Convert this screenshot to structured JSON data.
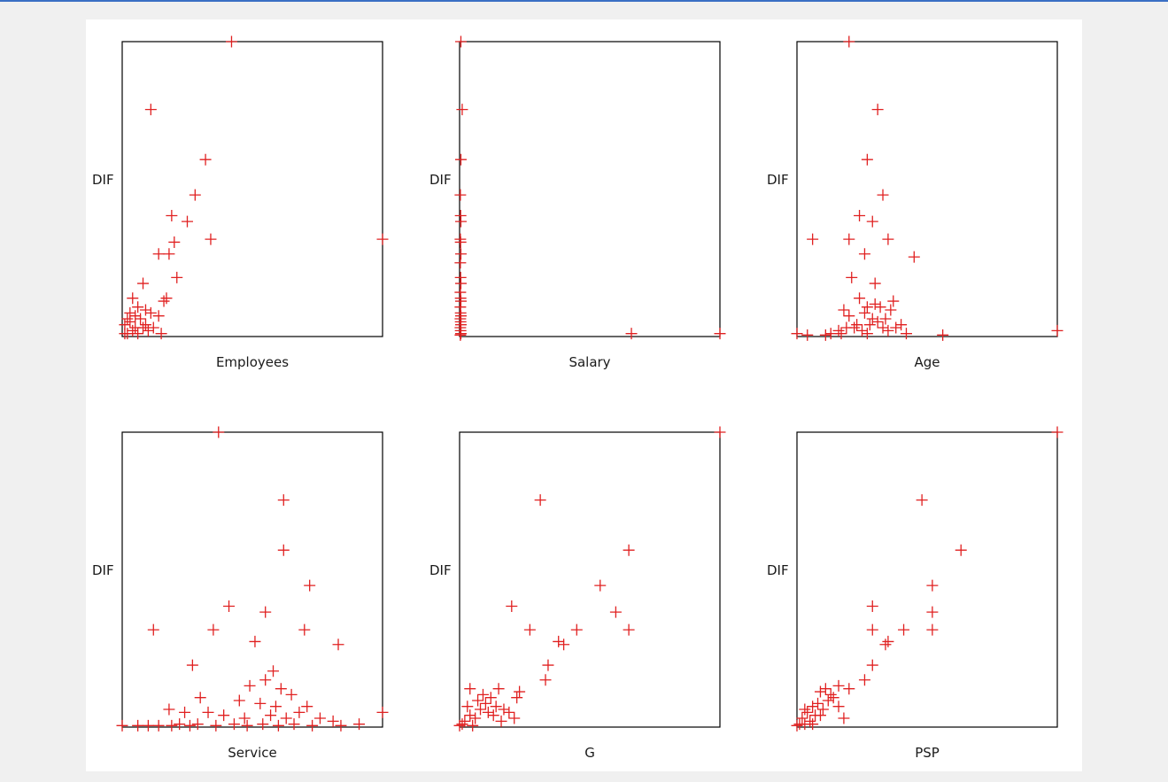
{
  "colors": {
    "marker": "#e02020",
    "frame": "#000000",
    "panel": "#ffffff",
    "background": "#f0f0f0"
  },
  "chart_data": [
    {
      "type": "scatter",
      "xlabel": "Employees",
      "ylabel": "DIF",
      "xlim": [
        0,
        100
      ],
      "ylim": [
        0,
        100
      ],
      "points": [
        [
          42,
          100
        ],
        [
          11,
          77
        ],
        [
          32,
          60
        ],
        [
          28,
          48
        ],
        [
          19,
          41
        ],
        [
          25,
          39
        ],
        [
          34,
          33
        ],
        [
          20,
          32
        ],
        [
          100,
          33
        ],
        [
          14,
          28
        ],
        [
          18,
          28
        ],
        [
          21,
          20
        ],
        [
          17,
          13
        ],
        [
          16,
          12
        ],
        [
          4,
          13
        ],
        [
          8,
          18
        ],
        [
          1,
          4
        ],
        [
          3,
          5
        ],
        [
          5,
          3
        ],
        [
          7,
          6
        ],
        [
          9,
          9
        ],
        [
          11,
          8
        ],
        [
          14,
          7
        ],
        [
          2,
          1
        ],
        [
          4,
          2
        ],
        [
          6,
          1
        ],
        [
          8,
          3
        ],
        [
          10,
          2
        ],
        [
          3,
          8
        ],
        [
          6,
          10
        ],
        [
          9,
          4
        ],
        [
          12,
          3
        ],
        [
          15,
          1
        ],
        [
          1,
          1
        ],
        [
          2,
          6
        ],
        [
          5,
          7
        ]
      ]
    },
    {
      "type": "scatter",
      "xlabel": "Salary",
      "ylabel": "DIF",
      "xlim": [
        0,
        100
      ],
      "ylim": [
        0,
        100
      ],
      "points": [
        [
          0.5,
          100
        ],
        [
          1,
          77
        ],
        [
          0.5,
          60
        ],
        [
          0.3,
          48
        ],
        [
          0.4,
          41
        ],
        [
          0.5,
          39
        ],
        [
          0.3,
          33
        ],
        [
          0.4,
          32
        ],
        [
          0.5,
          28
        ],
        [
          0.3,
          25
        ],
        [
          0.4,
          20
        ],
        [
          0.5,
          18
        ],
        [
          0.3,
          15
        ],
        [
          0.4,
          13
        ],
        [
          0.5,
          12
        ],
        [
          0.3,
          10
        ],
        [
          0.4,
          8
        ],
        [
          0.5,
          7
        ],
        [
          0.3,
          6
        ],
        [
          0.4,
          5
        ],
        [
          0.5,
          4
        ],
        [
          0.3,
          3
        ],
        [
          0.4,
          2
        ],
        [
          0.5,
          1
        ],
        [
          0.3,
          0.5
        ],
        [
          66,
          1
        ],
        [
          100,
          1
        ]
      ]
    },
    {
      "type": "scatter",
      "xlabel": "Age",
      "ylabel": "DIF",
      "xlim": [
        0,
        100
      ],
      "ylim": [
        0,
        100
      ],
      "points": [
        [
          20,
          100
        ],
        [
          31,
          77
        ],
        [
          27,
          60
        ],
        [
          33,
          48
        ],
        [
          24,
          41
        ],
        [
          29,
          39
        ],
        [
          6,
          33
        ],
        [
          20,
          33
        ],
        [
          35,
          33
        ],
        [
          26,
          28
        ],
        [
          45,
          27
        ],
        [
          21,
          20
        ],
        [
          30,
          18
        ],
        [
          24,
          13
        ],
        [
          37,
          12
        ],
        [
          32,
          10
        ],
        [
          26,
          8
        ],
        [
          20,
          7
        ],
        [
          34,
          6
        ],
        [
          28,
          4
        ],
        [
          22,
          3
        ],
        [
          16,
          2
        ],
        [
          11,
          0.5
        ],
        [
          56,
          0.5
        ],
        [
          100,
          2
        ],
        [
          0,
          1
        ],
        [
          4,
          0.5
        ],
        [
          13,
          1
        ],
        [
          17,
          1
        ],
        [
          19,
          3
        ],
        [
          23,
          4
        ],
        [
          25,
          2
        ],
        [
          27,
          1
        ],
        [
          29,
          6
        ],
        [
          31,
          5
        ],
        [
          33,
          3
        ],
        [
          35,
          2
        ],
        [
          38,
          3
        ],
        [
          40,
          4
        ],
        [
          42,
          1
        ],
        [
          18,
          9
        ],
        [
          36,
          9
        ],
        [
          30,
          11
        ],
        [
          27,
          10
        ]
      ]
    },
    {
      "type": "scatter",
      "xlabel": "Service",
      "ylabel": "DIF",
      "xlim": [
        0,
        100
      ],
      "ylim": [
        0,
        100
      ],
      "points": [
        [
          37,
          100
        ],
        [
          62,
          77
        ],
        [
          62,
          60
        ],
        [
          72,
          48
        ],
        [
          41,
          41
        ],
        [
          55,
          39
        ],
        [
          12,
          33
        ],
        [
          35,
          33
        ],
        [
          70,
          33
        ],
        [
          51,
          29
        ],
        [
          83,
          28
        ],
        [
          27,
          21
        ],
        [
          58,
          19
        ],
        [
          55,
          16
        ],
        [
          49,
          14
        ],
        [
          61,
          13
        ],
        [
          65,
          11
        ],
        [
          30,
          10
        ],
        [
          45,
          9
        ],
        [
          53,
          8
        ],
        [
          59,
          7
        ],
        [
          71,
          7
        ],
        [
          18,
          6
        ],
        [
          24,
          5
        ],
        [
          33,
          5
        ],
        [
          39,
          4
        ],
        [
          47,
          3
        ],
        [
          57,
          4
        ],
        [
          63,
          3
        ],
        [
          68,
          5
        ],
        [
          76,
          3
        ],
        [
          81,
          2
        ],
        [
          91,
          1
        ],
        [
          100,
          5
        ],
        [
          0,
          0.5
        ],
        [
          6,
          0.5
        ],
        [
          10,
          0.5
        ],
        [
          14,
          0.5
        ],
        [
          19,
          0.5
        ],
        [
          22,
          1
        ],
        [
          26,
          0.5
        ],
        [
          29,
          1
        ],
        [
          36,
          0.5
        ],
        [
          43,
          1
        ],
        [
          48,
          0.5
        ],
        [
          54,
          1
        ],
        [
          60,
          0.5
        ],
        [
          66,
          1
        ],
        [
          73,
          0.5
        ],
        [
          84,
          0.5
        ]
      ]
    },
    {
      "type": "scatter",
      "xlabel": "G",
      "ylabel": "DIF",
      "xlim": [
        0,
        100
      ],
      "ylim": [
        0,
        100
      ],
      "points": [
        [
          100,
          100
        ],
        [
          31,
          77
        ],
        [
          65,
          60
        ],
        [
          54,
          48
        ],
        [
          20,
          41
        ],
        [
          60,
          39
        ],
        [
          27,
          33
        ],
        [
          45,
          33
        ],
        [
          65,
          33
        ],
        [
          40,
          28
        ],
        [
          38,
          29
        ],
        [
          34,
          21
        ],
        [
          33,
          16
        ],
        [
          23,
          12
        ],
        [
          15,
          13
        ],
        [
          22,
          10
        ],
        [
          10,
          8
        ],
        [
          14,
          7
        ],
        [
          17,
          6
        ],
        [
          4,
          13
        ],
        [
          2,
          2
        ],
        [
          4,
          4
        ],
        [
          6,
          3
        ],
        [
          8,
          6
        ],
        [
          11,
          5
        ],
        [
          13,
          4
        ],
        [
          16,
          2
        ],
        [
          19,
          5
        ],
        [
          21,
          3
        ],
        [
          1,
          1
        ],
        [
          3,
          7
        ],
        [
          7,
          9
        ],
        [
          9,
          11
        ],
        [
          12,
          10
        ],
        [
          5,
          0.5
        ],
        [
          0,
          0.5
        ]
      ]
    },
    {
      "type": "scatter",
      "xlabel": "PSP",
      "ylabel": "DIF",
      "xlim": [
        0,
        100
      ],
      "ylim": [
        0,
        100
      ],
      "points": [
        [
          100,
          100
        ],
        [
          48,
          77
        ],
        [
          63,
          60
        ],
        [
          52,
          48
        ],
        [
          29,
          41
        ],
        [
          52,
          39
        ],
        [
          29,
          33
        ],
        [
          41,
          33
        ],
        [
          52,
          33
        ],
        [
          34,
          28
        ],
        [
          35,
          29
        ],
        [
          29,
          21
        ],
        [
          26,
          16
        ],
        [
          16,
          14
        ],
        [
          20,
          13
        ],
        [
          14,
          10
        ],
        [
          9,
          12
        ],
        [
          6,
          7
        ],
        [
          4,
          5
        ],
        [
          2,
          3
        ],
        [
          1,
          1
        ],
        [
          3,
          1
        ],
        [
          5,
          2
        ],
        [
          7,
          4
        ],
        [
          8,
          8
        ],
        [
          10,
          6
        ],
        [
          12,
          9
        ],
        [
          16,
          7
        ],
        [
          18,
          3
        ],
        [
          11,
          13
        ],
        [
          13,
          11
        ],
        [
          0,
          0.5
        ],
        [
          6,
          1
        ],
        [
          9,
          4
        ],
        [
          3,
          6
        ]
      ]
    }
  ]
}
